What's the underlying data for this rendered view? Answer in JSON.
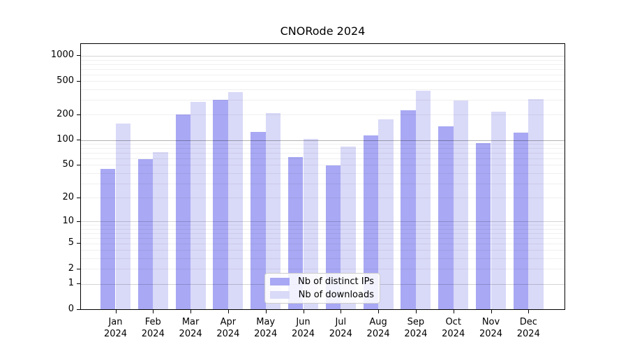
{
  "title": "CNORode 2024",
  "legend": {
    "items": [
      {
        "label": "Nb of distinct IPs",
        "color": "#a8a8f4"
      },
      {
        "label": "Nb of downloads",
        "color": "#d9d9f8"
      }
    ]
  },
  "chart_data": {
    "type": "bar",
    "title": "CNORode 2024",
    "categories": [
      "Jan 2024",
      "Feb 2024",
      "Mar 2024",
      "Apr 2024",
      "May 2024",
      "Jun 2024",
      "Jul 2024",
      "Aug 2024",
      "Sep 2024",
      "Oct 2024",
      "Nov 2024",
      "Dec 2024"
    ],
    "series": [
      {
        "name": "Nb of distinct IPs",
        "color": "#a8a8f4",
        "values": [
          45,
          59,
          203,
          298,
          124,
          62,
          49,
          113,
          228,
          146,
          92,
          123
        ]
      },
      {
        "name": "Nb of downloads",
        "color": "#d9d9f8",
        "values": [
          157,
          72,
          283,
          370,
          211,
          102,
          84,
          176,
          385,
          295,
          216,
          305
        ]
      }
    ],
    "xlabel": "",
    "ylabel": "",
    "yscale": "log10(1+x)",
    "y_ticks": [
      0,
      1,
      2,
      5,
      10,
      20,
      50,
      100,
      200,
      500,
      1000
    ],
    "ylim": [
      0,
      1380
    ],
    "grid": "horizontal; minor gridlines at 2-9 of each decade, darker line at 100",
    "legend_position": "inside lower center"
  }
}
